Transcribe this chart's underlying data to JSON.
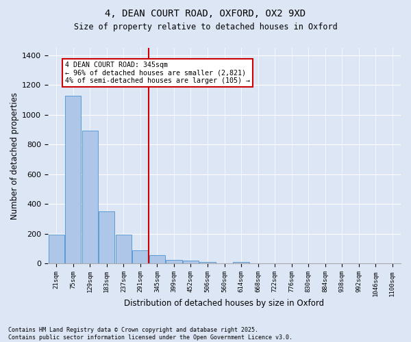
{
  "title": "4, DEAN COURT ROAD, OXFORD, OX2 9XD",
  "subtitle": "Size of property relative to detached houses in Oxford",
  "xlabel": "Distribution of detached houses by size in Oxford",
  "ylabel": "Number of detached properties",
  "bar_color": "#aec6e8",
  "bar_edge_color": "#5b9bd5",
  "background_color": "#dce6f5",
  "grid_color": "#ffffff",
  "annotation_line_color": "#cc0000",
  "annotation_box_edge": "#cc0000",
  "bin_labels": [
    "21sqm",
    "75sqm",
    "129sqm",
    "183sqm",
    "237sqm",
    "291sqm",
    "345sqm",
    "399sqm",
    "452sqm",
    "506sqm",
    "560sqm",
    "614sqm",
    "668sqm",
    "722sqm",
    "776sqm",
    "830sqm",
    "884sqm",
    "938sqm",
    "992sqm",
    "1046sqm",
    "1100sqm"
  ],
  "bar_heights": [
    195,
    1130,
    895,
    350,
    197,
    90,
    57,
    23,
    20,
    13,
    0,
    13,
    0,
    0,
    0,
    0,
    0,
    0,
    0,
    0,
    0
  ],
  "property_bin_index": 6,
  "annotation_text": "4 DEAN COURT ROAD: 345sqm\n← 96% of detached houses are smaller (2,821)\n4% of semi-detached houses are larger (105) →",
  "footer_text": "Contains HM Land Registry data © Crown copyright and database right 2025.\nContains public sector information licensed under the Open Government Licence v3.0.",
  "ylim": [
    0,
    1450
  ],
  "yticks": [
    0,
    200,
    400,
    600,
    800,
    1000,
    1200,
    1400
  ]
}
